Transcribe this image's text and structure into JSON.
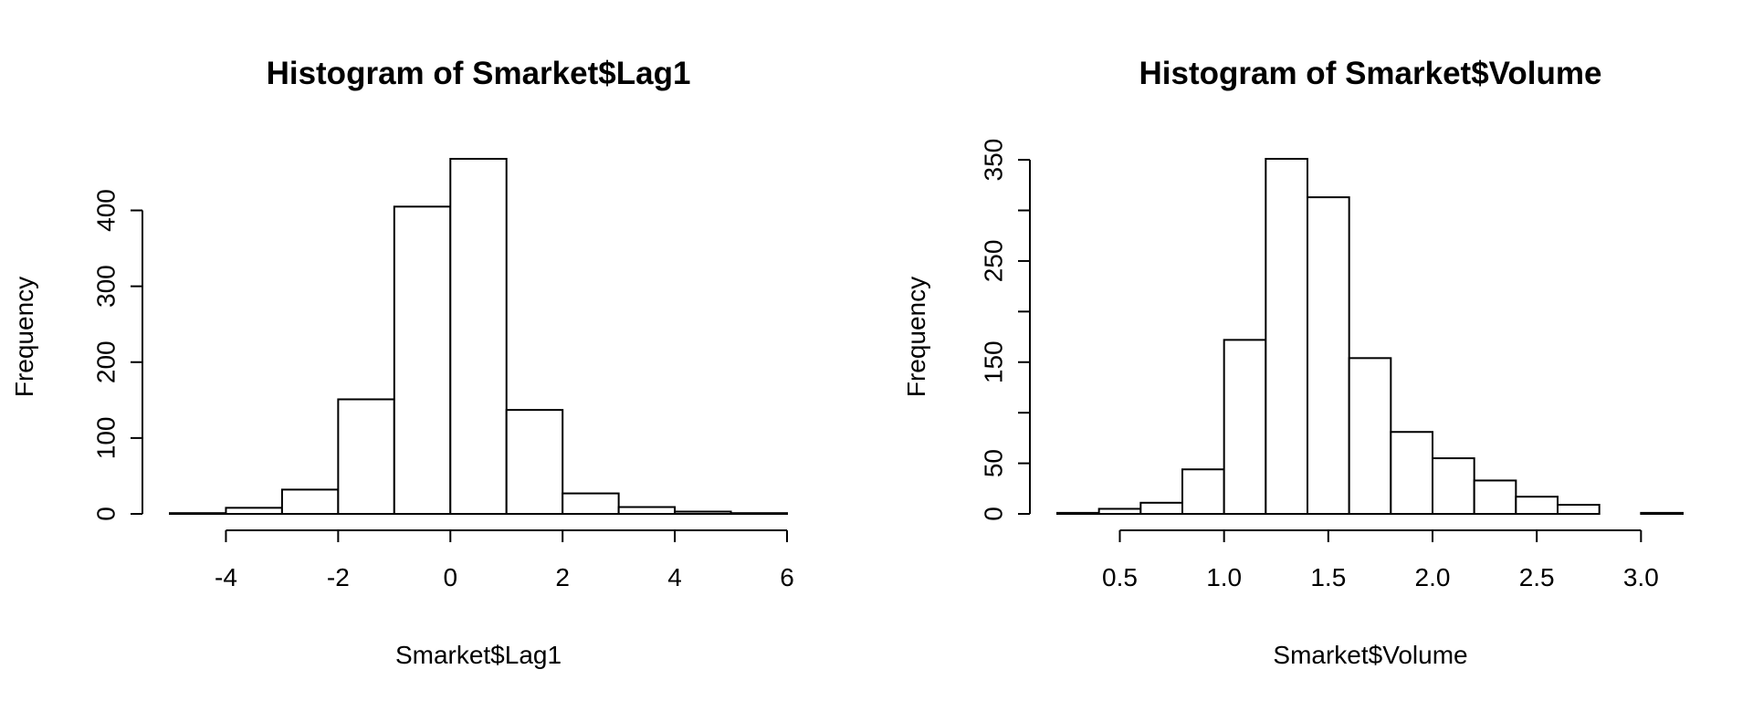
{
  "chart_data": [
    {
      "type": "bar",
      "title": "Histogram of Smarket$Lag1",
      "xlabel": "Smarket$Lag1",
      "ylabel": "Frequency",
      "bins": [
        {
          "start": -5,
          "end": -4,
          "value": 1
        },
        {
          "start": -4,
          "end": -3,
          "value": 8
        },
        {
          "start": -3,
          "end": -2,
          "value": 32
        },
        {
          "start": -2,
          "end": -1,
          "value": 151
        },
        {
          "start": -1,
          "end": 0,
          "value": 405
        },
        {
          "start": 0,
          "end": 1,
          "value": 468
        },
        {
          "start": 1,
          "end": 2,
          "value": 137
        },
        {
          "start": 2,
          "end": 3,
          "value": 27
        },
        {
          "start": 3,
          "end": 4,
          "value": 9
        },
        {
          "start": 4,
          "end": 5,
          "value": 3
        },
        {
          "start": 5,
          "end": 6,
          "value": 1
        }
      ],
      "x_ticks": [
        {
          "value": -4,
          "label": "-4"
        },
        {
          "value": -2,
          "label": "-2"
        },
        {
          "value": 0,
          "label": "0"
        },
        {
          "value": 2,
          "label": "2"
        },
        {
          "value": 4,
          "label": "4"
        },
        {
          "value": 6,
          "label": "6"
        }
      ],
      "y_ticks": [
        {
          "value": 0,
          "label": "0"
        },
        {
          "value": 100,
          "label": "100"
        },
        {
          "value": 200,
          "label": "200"
        },
        {
          "value": 300,
          "label": "300"
        },
        {
          "value": 400,
          "label": "400"
        }
      ],
      "xlim": [
        -5,
        6
      ],
      "ylim": [
        0,
        468
      ],
      "grid": false
    },
    {
      "type": "bar",
      "title": "Histogram of Smarket$Volume",
      "xlabel": "Smarket$Volume",
      "ylabel": "Frequency",
      "bins": [
        {
          "start": 0.2,
          "end": 0.4,
          "value": 1
        },
        {
          "start": 0.4,
          "end": 0.6,
          "value": 5
        },
        {
          "start": 0.6,
          "end": 0.8,
          "value": 11
        },
        {
          "start": 0.8,
          "end": 1.0,
          "value": 44
        },
        {
          "start": 1.0,
          "end": 1.2,
          "value": 172
        },
        {
          "start": 1.2,
          "end": 1.4,
          "value": 351
        },
        {
          "start": 1.4,
          "end": 1.6,
          "value": 313
        },
        {
          "start": 1.6,
          "end": 1.8,
          "value": 154
        },
        {
          "start": 1.8,
          "end": 2.0,
          "value": 81
        },
        {
          "start": 2.0,
          "end": 2.2,
          "value": 55
        },
        {
          "start": 2.2,
          "end": 2.4,
          "value": 33
        },
        {
          "start": 2.4,
          "end": 2.6,
          "value": 17
        },
        {
          "start": 2.6,
          "end": 2.8,
          "value": 9
        },
        {
          "start": 2.8,
          "end": 3.0,
          "value": 0
        },
        {
          "start": 3.0,
          "end": 3.2,
          "value": 1
        }
      ],
      "x_ticks": [
        {
          "value": 0.5,
          "label": "0.5"
        },
        {
          "value": 1.0,
          "label": "1.0"
        },
        {
          "value": 1.5,
          "label": "1.5"
        },
        {
          "value": 2.0,
          "label": "2.0"
        },
        {
          "value": 2.5,
          "label": "2.5"
        },
        {
          "value": 3.0,
          "label": "3.0"
        }
      ],
      "y_ticks": [
        {
          "value": 0,
          "label": "0"
        },
        {
          "value": 50,
          "label": "50"
        },
        {
          "value": 150,
          "label": "150"
        },
        {
          "value": 250,
          "label": "250"
        },
        {
          "value": 350,
          "label": "350"
        }
      ],
      "y_minor_ticks": [
        100,
        200,
        300
      ],
      "xlim": [
        0.2,
        3.2
      ],
      "ylim": [
        0,
        351
      ],
      "grid": false
    }
  ]
}
